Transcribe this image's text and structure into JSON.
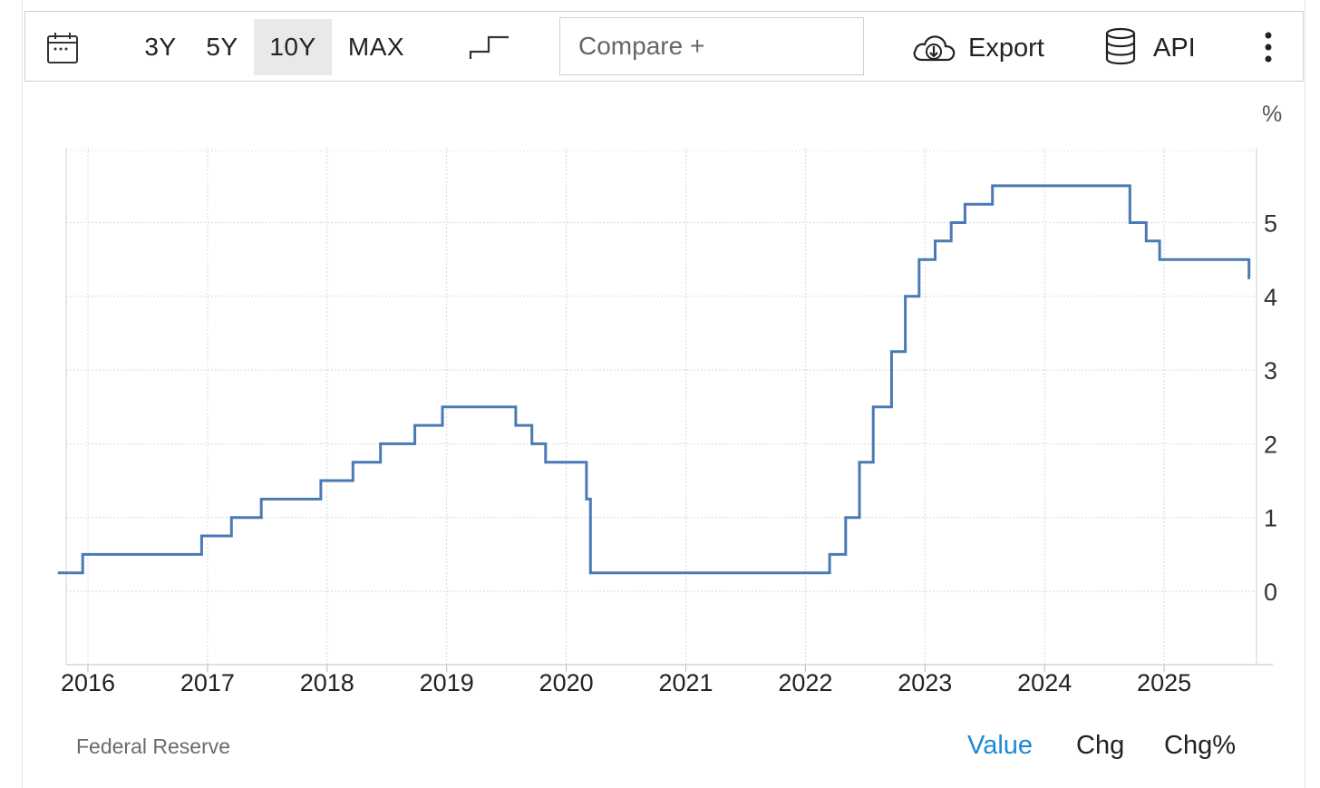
{
  "toolbar": {
    "calendar_icon": "calendar-icon",
    "ranges": [
      "3Y",
      "5Y",
      "10Y",
      "MAX"
    ],
    "active_range": "10Y",
    "step_icon": "step-chart-icon",
    "compare_placeholder": "Compare +",
    "export_label": "Export",
    "export_icon": "cloud-download-icon",
    "api_label": "API",
    "api_icon": "database-icon",
    "more_icon": "vertical-ellipsis-icon"
  },
  "chart_data": {
    "type": "line",
    "step": true,
    "unit": "%",
    "title": "",
    "xlabel": "",
    "ylabel": "",
    "x_ticks": [
      "2016",
      "2017",
      "2018",
      "2019",
      "2020",
      "2021",
      "2022",
      "2023",
      "2024",
      "2025"
    ],
    "y_ticks": [
      0,
      1,
      2,
      3,
      4,
      5
    ],
    "xlim": [
      "2015-10-01",
      "2025-10-01"
    ],
    "ylim": [
      -1,
      5.8
    ],
    "y_axis_side": "right",
    "grid": true,
    "line_color": "#4a7ab5",
    "series": [
      {
        "points": [
          [
            "2015-10-01",
            0.25
          ],
          [
            "2015-12-16",
            0.5
          ],
          [
            "2016-12-14",
            0.75
          ],
          [
            "2017-03-15",
            1.0
          ],
          [
            "2017-06-14",
            1.25
          ],
          [
            "2017-12-13",
            1.5
          ],
          [
            "2018-03-21",
            1.75
          ],
          [
            "2018-06-13",
            2.0
          ],
          [
            "2018-09-26",
            2.25
          ],
          [
            "2018-12-19",
            2.5
          ],
          [
            "2019-07-31",
            2.25
          ],
          [
            "2019-09-18",
            2.0
          ],
          [
            "2019-10-30",
            1.75
          ],
          [
            "2020-03-03",
            1.25
          ],
          [
            "2020-03-15",
            0.25
          ],
          [
            "2022-03-16",
            0.5
          ],
          [
            "2022-05-04",
            1.0
          ],
          [
            "2022-06-15",
            1.75
          ],
          [
            "2022-07-27",
            2.5
          ],
          [
            "2022-09-21",
            3.25
          ],
          [
            "2022-11-02",
            4.0
          ],
          [
            "2022-12-14",
            4.5
          ],
          [
            "2023-02-01",
            4.75
          ],
          [
            "2023-03-22",
            5.0
          ],
          [
            "2023-05-03",
            5.25
          ],
          [
            "2023-07-26",
            5.5
          ],
          [
            "2024-09-18",
            5.0
          ],
          [
            "2024-11-07",
            4.75
          ],
          [
            "2024-12-18",
            4.5
          ],
          [
            "2025-09-17",
            4.25
          ],
          [
            "2025-09-20",
            4.25
          ]
        ]
      }
    ]
  },
  "footer": {
    "source": "Federal Reserve",
    "tabs": [
      "Value",
      "Chg",
      "Chg%"
    ],
    "active_tab": "Value",
    "active_color": "#1a8ad6"
  }
}
